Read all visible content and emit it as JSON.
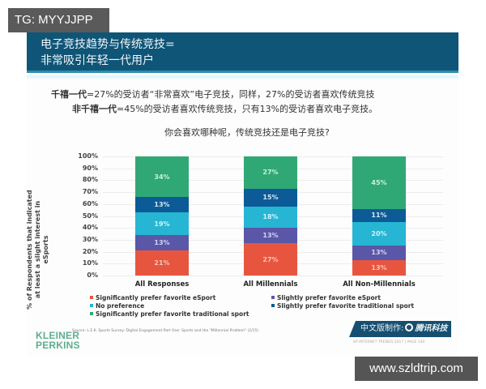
{
  "watermarks": {
    "top_left": "TG: MYYJJPP",
    "bottom_right": "www.szldtrip.com"
  },
  "slide": {
    "title_lines": [
      "电子竞技趋势与传统竞技=",
      "非常吸引年轻一代用户"
    ],
    "subtitle": {
      "line1_bold": "千禧一代",
      "line1_rest": "=27%的受访者“非常喜欢”电子竞技，同样，27%的受访者喜欢传统竞技",
      "line2_bold": "非千禧一代",
      "line2_rest": "=45%的受访者喜欢传统竞技，只有13%的受访者喜欢电子竞技。",
      "question": "你会喜欢哪种呢，传统竞技还是电子竞技?"
    },
    "footer": {
      "logo_line1": "KLEINER",
      "logo_line2": "PERKINS",
      "source": "Source: L.E.K. Sports Survey: Digital Engagement Part One: Sports and the \"Millennial Problem\" (2/15)",
      "badge_text": "中文版制作:",
      "badge_brand": "腾讯科技",
      "meta": "KP INTERNET TRENDS 2017 | PAGE 140"
    }
  },
  "chart_data": {
    "type": "bar",
    "stacked": true,
    "title": "",
    "xlabel": "",
    "ylabel": "% of Respondents that indicated at least a slight interest in eSports",
    "ylim": [
      0,
      100
    ],
    "y_ticks": [
      "0%",
      "10%",
      "20%",
      "30%",
      "40%",
      "50%",
      "60%",
      "70%",
      "80%",
      "90%",
      "100%"
    ],
    "grid": true,
    "legend_position": "bottom",
    "categories": [
      "All Responses",
      "All Millennials",
      "All Non-Millennials"
    ],
    "series": [
      {
        "name": "Significantly prefer favorite eSport",
        "color": "#e8553f",
        "values": [
          21,
          27,
          13
        ],
        "labels": [
          "21%",
          "27%",
          "13%"
        ]
      },
      {
        "name": "Slightly prefer favorite eSport",
        "color": "#5a57a8",
        "values": [
          13,
          13,
          13
        ],
        "labels": [
          "13%",
          "13%",
          "13%"
        ]
      },
      {
        "name": "No preference",
        "color": "#26b6d3",
        "values": [
          19,
          18,
          20
        ],
        "labels": [
          "19%",
          "18%",
          "20%"
        ]
      },
      {
        "name": "Slightly prefer favorite traditional sport",
        "color": "#0d5b96",
        "values": [
          13,
          15,
          11
        ],
        "labels": [
          "13%",
          "15%",
          "11%"
        ]
      },
      {
        "name": "Significantly prefer favorite traditional sport",
        "color": "#2fa876",
        "values": [
          34,
          27,
          45
        ],
        "labels": [
          "34%",
          "27%",
          "45%"
        ]
      }
    ],
    "legend": [
      {
        "label": "Significantly prefer favorite eSport",
        "color": "#e8553f"
      },
      {
        "label": "Slightly prefer favorite eSport",
        "color": "#5a57a8"
      },
      {
        "label": "No preference",
        "color": "#26b6d3"
      },
      {
        "label": "Slightly prefer favorite traditional sport",
        "color": "#0d5b96"
      },
      {
        "label": "Significantly prefer favorite traditional sport",
        "color": "#2fa876"
      }
    ],
    "label_colors": {
      "#e8553f": "#f7c6b8",
      "#5a57a8": "#d6d4f0",
      "#26b6d3": "#cff3fa",
      "#0d5b96": "#d4e8f7",
      "#2fa876": "#c9f2d6"
    }
  }
}
